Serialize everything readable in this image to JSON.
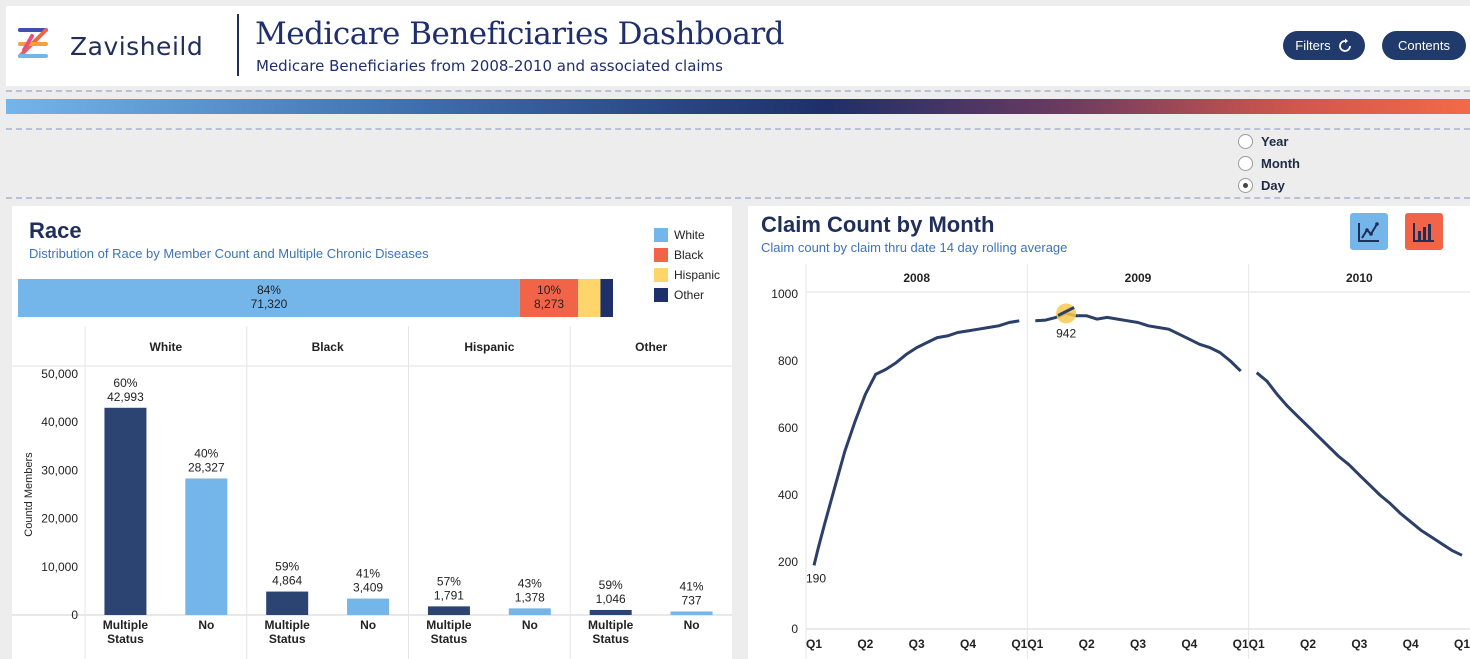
{
  "header": {
    "brand": "Zavisheild",
    "title": "Medicare Beneficiaries Dashboard",
    "subtitle": "Medicare Beneficiaries from 2008-2010 and associated claims",
    "filters_label": "Filters",
    "contents_label": "Contents"
  },
  "granularity": {
    "options": [
      "Year",
      "Month",
      "Day"
    ],
    "selected": "Day"
  },
  "race_panel": {
    "title": "Race",
    "subtitle": "Distribution of Race by Member Count and Multiple Chronic Diseases",
    "legend": [
      {
        "label": "White",
        "color": "#74b5ea"
      },
      {
        "label": "Black",
        "color": "#f26448"
      },
      {
        "label": "Hispanic",
        "color": "#fdd56b"
      },
      {
        "label": "Other",
        "color": "#1e2f6a"
      }
    ],
    "stacked": [
      {
        "race": "White",
        "pct": "84%",
        "count": "71,320",
        "value": 71320
      },
      {
        "race": "Black",
        "pct": "10%",
        "count": "8,273",
        "value": 8273
      },
      {
        "race": "Hispanic",
        "pct": "",
        "count": "",
        "value": 3169
      },
      {
        "race": "Other",
        "pct": "",
        "count": "",
        "value": 1783
      }
    ]
  },
  "chart_data": [
    {
      "type": "bar",
      "orientation": "horizontal-stacked",
      "categories": [
        "White",
        "Black",
        "Hispanic",
        "Other"
      ],
      "values": [
        71320,
        8273,
        3169,
        1783
      ],
      "labels": [
        "84%\n71,320",
        "10%\n8,273",
        "",
        ""
      ]
    },
    {
      "type": "bar",
      "ylabel": "Countd Members",
      "ylim": [
        0,
        50000
      ],
      "yticks": [
        "50,000",
        "40,000",
        "30,000",
        "20,000",
        "10,000",
        "0"
      ],
      "ytick_values": [
        50000,
        40000,
        30000,
        20000,
        10000,
        0
      ],
      "groups": [
        "White",
        "Black",
        "Hispanic",
        "Other"
      ],
      "categories": [
        "Multiple Status",
        "No"
      ],
      "bars": [
        {
          "group": "White",
          "category": "Multiple Status",
          "value": 42993,
          "pct": "60%",
          "label": "42,993",
          "color": "#2b4472"
        },
        {
          "group": "White",
          "category": "No",
          "value": 28327,
          "pct": "40%",
          "label": "28,327",
          "color": "#74b5ea"
        },
        {
          "group": "Black",
          "category": "Multiple Status",
          "value": 4864,
          "pct": "59%",
          "label": "4,864",
          "color": "#2b4472"
        },
        {
          "group": "Black",
          "category": "No",
          "value": 3409,
          "pct": "41%",
          "label": "3,409",
          "color": "#74b5ea"
        },
        {
          "group": "Hispanic",
          "category": "Multiple Status",
          "value": 1791,
          "pct": "57%",
          "label": "1,791",
          "color": "#2b4472"
        },
        {
          "group": "Hispanic",
          "category": "No",
          "value": 1378,
          "pct": "43%",
          "label": "1,378",
          "color": "#74b5ea"
        },
        {
          "group": "Other",
          "category": "Multiple Status",
          "value": 1046,
          "pct": "59%",
          "label": "1,046",
          "color": "#2b4472"
        },
        {
          "group": "Other",
          "category": "No",
          "value": 737,
          "pct": "41%",
          "label": "737",
          "color": "#74b5ea"
        }
      ],
      "xlabels": [
        "Multiple\nStatus",
        "No"
      ]
    },
    {
      "type": "line",
      "title": "Claim Count by Month",
      "subtitle": "Claim count by claim thru date 14 day rolling average",
      "ylim": [
        0,
        1000
      ],
      "yticks": [
        "1000",
        "800",
        "600",
        "400",
        "200",
        "0"
      ],
      "ytick_values": [
        1000,
        800,
        600,
        400,
        200,
        0
      ],
      "panels": [
        "2008",
        "2009",
        "2010"
      ],
      "xticks": [
        "Q1",
        "Q2",
        "Q3",
        "Q4",
        "Q1"
      ],
      "annotations": [
        {
          "panel": "2008",
          "label": "190",
          "value": 190
        },
        {
          "panel": "2009",
          "label": "942",
          "value": 942
        }
      ],
      "series": [
        {
          "panel": "2008",
          "x": [
            0,
            0.02,
            0.05,
            0.1,
            0.15,
            0.2,
            0.25,
            0.3,
            0.35,
            0.4,
            0.45,
            0.5,
            0.55,
            0.6,
            0.65,
            0.7,
            0.75,
            0.8,
            0.85,
            0.9,
            0.95,
            1.0
          ],
          "y": [
            190,
            240,
            310,
            420,
            530,
            620,
            700,
            760,
            775,
            795,
            820,
            840,
            855,
            870,
            875,
            885,
            890,
            895,
            900,
            905,
            915,
            920
          ]
        },
        {
          "panel": "2009",
          "x": [
            0,
            0.05,
            0.1,
            0.15,
            0.2,
            0.25,
            0.3,
            0.35,
            0.4,
            0.45,
            0.5,
            0.55,
            0.6,
            0.65,
            0.7,
            0.75,
            0.8,
            0.85,
            0.9,
            0.95,
            1.0
          ],
          "y": [
            920,
            922,
            930,
            942,
            935,
            935,
            925,
            930,
            925,
            920,
            915,
            905,
            900,
            895,
            880,
            865,
            850,
            840,
            825,
            800,
            770
          ]
        },
        {
          "panel": "2010",
          "x": [
            0,
            0.05,
            0.1,
            0.15,
            0.2,
            0.25,
            0.3,
            0.35,
            0.4,
            0.45,
            0.5,
            0.55,
            0.6,
            0.65,
            0.7,
            0.75,
            0.8,
            0.85,
            0.9,
            0.95,
            1.0
          ],
          "y": [
            765,
            740,
            700,
            665,
            635,
            605,
            575,
            545,
            515,
            490,
            460,
            430,
            400,
            375,
            345,
            320,
            295,
            275,
            255,
            235,
            220
          ]
        }
      ]
    }
  ],
  "claim_panel": {
    "title": "Claim Count by Month",
    "subtitle": "Claim count by claim thru date 14 day rolling average"
  },
  "colors": {
    "navy": "#1f2f5a",
    "accent_blue": "#74b5ea",
    "accent_red": "#f26448",
    "dark_bar": "#2b4472",
    "line": "#2b3f68"
  }
}
